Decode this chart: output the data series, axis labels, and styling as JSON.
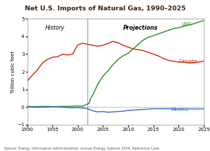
{
  "title": "Net U.S. Imports of Natural Gas, 1990–2025",
  "title_bg": "#d4705a",
  "title_color": "#3a2010",
  "ylabel": "Trillion cubic feet",
  "source_text": "Source: Energy Information Administration, Annual Energy Outlook 2004, Reference Case",
  "xlim": [
    1990,
    2025
  ],
  "ylim": [
    -1,
    5
  ],
  "yticks": [
    -1,
    0,
    1,
    2,
    3,
    4,
    5
  ],
  "xticks": [
    1990,
    1995,
    2000,
    2005,
    2010,
    2015,
    2020,
    2025
  ],
  "divider_year": 2002,
  "history_label": "History",
  "projections_label": "Projections",
  "canada_color": "#cc2200",
  "lng_color": "#228822",
  "mexico_color": "#3366cc",
  "canada_label": "Canada",
  "lng_label": "LNG",
  "mexico_label": "Mexico",
  "canada_data": {
    "years": [
      1990,
      1991,
      1992,
      1993,
      1994,
      1995,
      1996,
      1997,
      1998,
      1999,
      2000,
      2001,
      2002,
      2003,
      2004,
      2005,
      2006,
      2007,
      2008,
      2009,
      2010,
      2011,
      2012,
      2013,
      2014,
      2015,
      2016,
      2017,
      2018,
      2019,
      2020,
      2021,
      2022,
      2023,
      2024,
      2025
    ],
    "values": [
      1.48,
      1.8,
      2.1,
      2.5,
      2.7,
      2.82,
      2.85,
      3.0,
      2.95,
      3.0,
      3.52,
      3.62,
      3.55,
      3.5,
      3.45,
      3.5,
      3.6,
      3.72,
      3.65,
      3.5,
      3.4,
      3.3,
      3.25,
      3.2,
      3.1,
      3.0,
      2.9,
      2.75,
      2.65,
      2.6,
      2.55,
      2.55,
      2.5,
      2.5,
      2.55,
      2.6
    ]
  },
  "lng_data": {
    "years": [
      1990,
      1991,
      1992,
      1993,
      1994,
      1995,
      1996,
      1997,
      1998,
      1999,
      2000,
      2001,
      2002,
      2002.3,
      2002.5,
      2003,
      2004,
      2005,
      2006,
      2007,
      2008,
      2009,
      2010,
      2011,
      2012,
      2013,
      2014,
      2015,
      2016,
      2017,
      2018,
      2019,
      2020,
      2021,
      2022,
      2023,
      2024,
      2025
    ],
    "values": [
      0.03,
      0.02,
      0.02,
      0.03,
      0.03,
      0.02,
      0.02,
      0.03,
      0.03,
      0.04,
      0.06,
      0.04,
      0.18,
      0.22,
      0.45,
      0.68,
      1.3,
      1.75,
      2.05,
      2.4,
      2.7,
      2.9,
      3.05,
      3.3,
      3.55,
      3.8,
      3.95,
      4.05,
      4.15,
      4.25,
      4.35,
      4.45,
      4.5,
      4.58,
      4.65,
      4.72,
      4.82,
      4.9
    ]
  },
  "mexico_data": {
    "years": [
      1990,
      1991,
      1992,
      1993,
      1994,
      1995,
      1996,
      1997,
      1998,
      1999,
      2000,
      2001,
      2002,
      2003,
      2004,
      2005,
      2006,
      2007,
      2008,
      2009,
      2010,
      2011,
      2012,
      2013,
      2014,
      2015,
      2016,
      2017,
      2018,
      2019,
      2020,
      2021,
      2022,
      2023,
      2024,
      2025
    ],
    "values": [
      0.0,
      -0.01,
      -0.02,
      -0.01,
      0.0,
      0.01,
      0.0,
      -0.01,
      -0.04,
      -0.05,
      -0.04,
      -0.06,
      -0.1,
      -0.22,
      -0.28,
      -0.26,
      -0.3,
      -0.28,
      -0.26,
      -0.24,
      -0.2,
      -0.18,
      -0.16,
      -0.14,
      -0.12,
      -0.1,
      -0.1,
      -0.1,
      -0.1,
      -0.11,
      -0.11,
      -0.11,
      -0.11,
      -0.11,
      -0.11,
      -0.11
    ]
  }
}
